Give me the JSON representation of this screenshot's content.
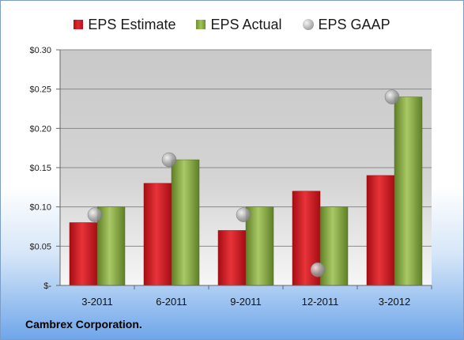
{
  "chart_data": {
    "type": "bar",
    "categories": [
      "3-2011",
      "6-2011",
      "9-2011",
      "12-2011",
      "3-2012"
    ],
    "series": [
      {
        "name": "EPS Estimate",
        "type": "bar",
        "values": [
          0.08,
          0.13,
          0.07,
          0.12,
          0.14
        ],
        "color": "#cc1a20"
      },
      {
        "name": "EPS Actual",
        "type": "bar",
        "values": [
          0.1,
          0.16,
          0.1,
          0.1,
          0.24
        ],
        "color": "#8db04a"
      },
      {
        "name": "EPS GAAP",
        "type": "scatter",
        "values": [
          0.09,
          0.16,
          0.09,
          0.02,
          0.24
        ],
        "color": "#a8a8a8"
      }
    ],
    "yticks": [
      "$-",
      "$0.05",
      "$0.10",
      "$0.15",
      "$0.20",
      "$0.25",
      "$0.30"
    ],
    "ytick_values": [
      0,
      0.05,
      0.1,
      0.15,
      0.2,
      0.25,
      0.3
    ],
    "ylim": [
      0,
      0.3
    ],
    "grid": true,
    "legend_position": "top"
  },
  "footer": {
    "company": "Cambrex Corporation."
  }
}
